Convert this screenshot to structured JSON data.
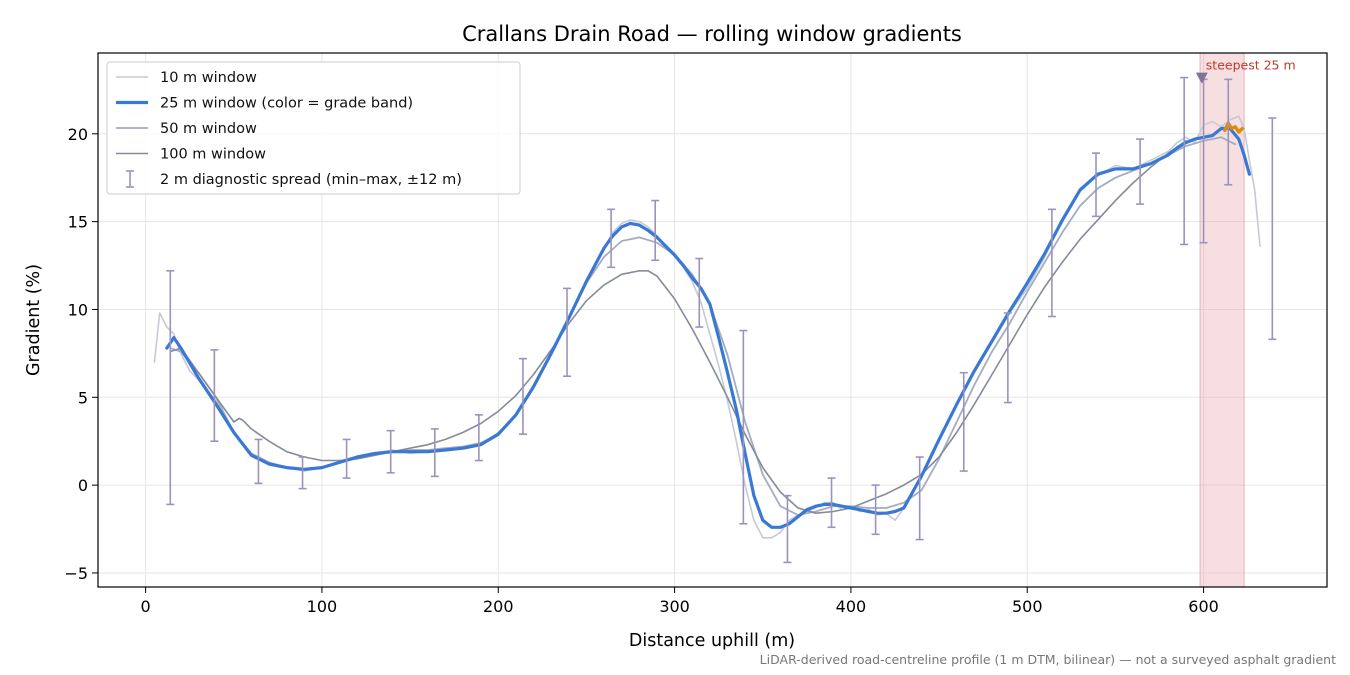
{
  "chart_data": {
    "type": "line",
    "title": "Crallans Drain Road — rolling window gradients",
    "xlabel": "Distance uphill (m)",
    "ylabel": "Gradient (%)",
    "xlim": [
      -27,
      670
    ],
    "ylim": [
      -5.8,
      24.6
    ],
    "xticks": [
      0,
      100,
      200,
      300,
      400,
      500,
      600
    ],
    "yticks": [
      -5,
      0,
      5,
      10,
      15,
      20
    ],
    "xtick_labels": [
      "0",
      "100",
      "200",
      "300",
      "400",
      "500",
      "600"
    ],
    "ytick_labels": [
      "−5",
      "0",
      "5",
      "10",
      "15",
      "20"
    ],
    "grid": true,
    "legend_position": "top-left",
    "footnote": "LiDAR-derived road-centreline profile (1 m DTM, bilinear) — not a surveyed asphalt gradient",
    "colors": {
      "w10": "#c4cad6",
      "w25_base": "#3a78d6",
      "w25_steep": "#e08a0b",
      "w50": "#a3adbd",
      "w100": "#868b9b",
      "errorbar": "#9b93bd",
      "highlight": "#e8a4a8",
      "marker": "#7d7596",
      "annotation": "#c0392b"
    },
    "legend": [
      {
        "key": "w10",
        "label": "10 m window"
      },
      {
        "key": "w25",
        "label": "25 m window (color = grade band)"
      },
      {
        "key": "w50",
        "label": "50 m window"
      },
      {
        "key": "w100",
        "label": "100 m window"
      },
      {
        "key": "err",
        "label": "2 m diagnostic spread (min–max, ±12 m)"
      }
    ],
    "steepest": {
      "label": "steepest 25 m",
      "x_start": 598,
      "x_end": 623,
      "marker_x": 599,
      "marker_y": 23.2
    },
    "series": [
      {
        "name": "10 m window",
        "key": "w10",
        "x": [
          5,
          8,
          12,
          16,
          20,
          25,
          30,
          40,
          50,
          60,
          70,
          80,
          90,
          100,
          110,
          120,
          130,
          140,
          150,
          160,
          170,
          180,
          190,
          200,
          210,
          220,
          230,
          240,
          250,
          260,
          265,
          270,
          275,
          280,
          285,
          290,
          295,
          300,
          305,
          310,
          315,
          320,
          325,
          330,
          335,
          340,
          345,
          350,
          355,
          360,
          365,
          370,
          375,
          380,
          385,
          390,
          395,
          400,
          405,
          410,
          415,
          420,
          425,
          430,
          440,
          450,
          460,
          470,
          480,
          490,
          500,
          510,
          520,
          530,
          540,
          550,
          560,
          570,
          580,
          585,
          590,
          595,
          600,
          605,
          610,
          615,
          620,
          623,
          626,
          629,
          632
        ],
        "y": [
          7.0,
          9.8,
          9.0,
          8.6,
          7.5,
          6.5,
          6.0,
          4.8,
          3.0,
          1.8,
          1.3,
          1.0,
          0.8,
          1.0,
          1.3,
          1.5,
          1.8,
          2.0,
          1.8,
          1.9,
          2.0,
          2.1,
          2.3,
          3.0,
          4.0,
          5.5,
          7.5,
          9.5,
          11.5,
          13.5,
          14.4,
          14.9,
          15.1,
          15.0,
          14.7,
          14.2,
          13.6,
          13.0,
          12.4,
          11.6,
          10.4,
          8.6,
          6.8,
          4.8,
          2.5,
          0.0,
          -2.0,
          -3.0,
          -3.0,
          -2.7,
          -2.0,
          -1.7,
          -1.5,
          -1.3,
          -1.0,
          -1.0,
          -1.4,
          -1.2,
          -1.5,
          -1.4,
          -1.7,
          -1.6,
          -2.0,
          -1.3,
          0.5,
          2.5,
          4.6,
          6.4,
          8.1,
          9.8,
          11.2,
          13.0,
          15.2,
          16.9,
          17.6,
          18.2,
          18.0,
          18.5,
          19.0,
          19.5,
          19.8,
          19.5,
          20.5,
          20.7,
          20.4,
          20.8,
          21.0,
          20.3,
          18.5,
          16.8,
          13.6
        ]
      },
      {
        "name": "25 m window (color = grade band)",
        "key": "w25",
        "x": [
          12,
          16,
          20,
          30,
          40,
          50,
          60,
          70,
          80,
          90,
          100,
          110,
          120,
          130,
          140,
          150,
          160,
          170,
          180,
          190,
          200,
          210,
          220,
          230,
          240,
          250,
          260,
          265,
          270,
          275,
          280,
          285,
          290,
          295,
          300,
          305,
          310,
          315,
          320,
          325,
          330,
          335,
          340,
          345,
          350,
          355,
          360,
          365,
          370,
          375,
          380,
          385,
          390,
          395,
          400,
          405,
          410,
          415,
          420,
          425,
          430,
          440,
          450,
          460,
          470,
          480,
          490,
          500,
          510,
          520,
          530,
          540,
          550,
          560,
          570,
          580,
          585,
          590,
          595,
          600,
          605,
          610,
          615,
          620,
          623,
          626
        ],
        "y": [
          7.8,
          8.4,
          7.8,
          6.1,
          4.6,
          3.0,
          1.7,
          1.2,
          1.0,
          0.9,
          1.0,
          1.3,
          1.6,
          1.8,
          1.9,
          1.9,
          1.9,
          2.0,
          2.1,
          2.3,
          2.9,
          4.0,
          5.6,
          7.5,
          9.5,
          11.6,
          13.5,
          14.2,
          14.7,
          14.9,
          14.8,
          14.5,
          14.1,
          13.6,
          13.1,
          12.5,
          11.8,
          11.2,
          10.3,
          8.4,
          6.4,
          4.3,
          1.8,
          -0.6,
          -2.0,
          -2.4,
          -2.4,
          -2.2,
          -1.8,
          -1.4,
          -1.2,
          -1.1,
          -1.1,
          -1.2,
          -1.3,
          -1.4,
          -1.5,
          -1.6,
          -1.6,
          -1.5,
          -1.3,
          0.5,
          2.6,
          4.6,
          6.5,
          8.2,
          9.9,
          11.5,
          13.2,
          15.1,
          16.8,
          17.7,
          18.0,
          18.0,
          18.3,
          18.8,
          19.2,
          19.5,
          19.7,
          19.8,
          19.9,
          20.3,
          20.3,
          19.7,
          18.8,
          17.7
        ]
      },
      {
        "name": "50 m window",
        "key": "w50",
        "x": [
          14,
          20,
          30,
          40,
          50,
          60,
          70,
          80,
          90,
          100,
          110,
          120,
          130,
          140,
          150,
          160,
          170,
          180,
          190,
          200,
          210,
          220,
          230,
          240,
          250,
          260,
          270,
          280,
          290,
          300,
          310,
          320,
          330,
          340,
          350,
          360,
          370,
          380,
          390,
          400,
          410,
          420,
          430,
          440,
          450,
          460,
          470,
          480,
          490,
          500,
          510,
          520,
          530,
          540,
          550,
          560,
          570,
          580,
          590,
          600,
          610,
          618
        ],
        "y": [
          7.8,
          7.6,
          6.4,
          5.0,
          3.0,
          1.8,
          1.3,
          1.0,
          0.9,
          1.0,
          1.3,
          1.6,
          1.8,
          1.9,
          2.0,
          2.0,
          2.1,
          2.2,
          2.4,
          2.9,
          4.0,
          5.6,
          7.5,
          9.5,
          11.5,
          13.0,
          13.9,
          14.1,
          13.8,
          13.1,
          12.0,
          10.3,
          7.4,
          3.6,
          0.6,
          -1.2,
          -1.7,
          -1.5,
          -1.2,
          -1.2,
          -1.3,
          -1.3,
          -1.0,
          -0.3,
          1.5,
          3.6,
          5.7,
          7.6,
          9.2,
          11.0,
          12.7,
          14.4,
          15.9,
          16.9,
          17.5,
          17.9,
          18.3,
          18.8,
          19.3,
          19.6,
          19.8,
          19.4
        ]
      },
      {
        "name": "100 m window",
        "key": "w100",
        "x": [
          14,
          20,
          30,
          40,
          50,
          53,
          55,
          60,
          70,
          80,
          90,
          100,
          110,
          120,
          130,
          140,
          150,
          160,
          170,
          180,
          190,
          200,
          210,
          220,
          230,
          240,
          250,
          260,
          270,
          280,
          285,
          290,
          300,
          310,
          320,
          330,
          340,
          350,
          360,
          370,
          380,
          390,
          400,
          410,
          420,
          430,
          440,
          450,
          460,
          470,
          480,
          490,
          500,
          510,
          520,
          530,
          540,
          550,
          560,
          570,
          580,
          590
        ],
        "y": [
          7.6,
          7.8,
          6.4,
          5.0,
          3.6,
          3.8,
          3.7,
          3.2,
          2.5,
          1.9,
          1.6,
          1.4,
          1.4,
          1.5,
          1.7,
          1.9,
          2.1,
          2.3,
          2.6,
          3.0,
          3.5,
          4.2,
          5.1,
          6.3,
          7.7,
          9.2,
          10.5,
          11.4,
          12.0,
          12.2,
          12.2,
          11.9,
          10.6,
          8.9,
          7.0,
          5.0,
          2.9,
          1.0,
          -0.4,
          -1.3,
          -1.6,
          -1.5,
          -1.3,
          -0.9,
          -0.5,
          0.0,
          0.6,
          1.6,
          3.0,
          4.6,
          6.3,
          8.0,
          9.7,
          11.3,
          12.7,
          14.0,
          15.1,
          16.2,
          17.2,
          18.1,
          18.9,
          19.6
        ]
      }
    ],
    "steep_band_segment": {
      "x": [
        612,
        614,
        616,
        618,
        620,
        622
      ],
      "y": [
        20.2,
        20.6,
        20.3,
        20.4,
        20.1,
        20.3
      ]
    },
    "errorbars": [
      {
        "x": 14,
        "low": -1.1,
        "high": 12.2,
        "center": 7.8
      },
      {
        "x": 39,
        "low": 2.5,
        "high": 7.7,
        "center": 5.0
      },
      {
        "x": 64,
        "low": 0.1,
        "high": 2.6,
        "center": 1.5
      },
      {
        "x": 89,
        "low": -0.2,
        "high": 1.6,
        "center": 0.9
      },
      {
        "x": 114,
        "low": 0.4,
        "high": 2.6,
        "center": 1.4
      },
      {
        "x": 139,
        "low": 0.7,
        "high": 3.1,
        "center": 1.9
      },
      {
        "x": 164,
        "low": 0.5,
        "high": 3.2,
        "center": 1.9
      },
      {
        "x": 189,
        "low": 1.4,
        "high": 4.0,
        "center": 2.3
      },
      {
        "x": 214,
        "low": 2.9,
        "high": 7.2,
        "center": 4.5
      },
      {
        "x": 239,
        "low": 6.2,
        "high": 11.2,
        "center": 9.3
      },
      {
        "x": 264,
        "low": 12.4,
        "high": 15.7,
        "center": 13.9
      },
      {
        "x": 289,
        "low": 12.8,
        "high": 16.2,
        "center": 14.2
      },
      {
        "x": 314,
        "low": 9.0,
        "high": 12.9,
        "center": 11.2
      },
      {
        "x": 339,
        "low": -2.2,
        "high": 8.8,
        "center": 2.0
      },
      {
        "x": 364,
        "low": -4.4,
        "high": -0.6,
        "center": -2.4
      },
      {
        "x": 389,
        "low": -2.4,
        "high": 0.4,
        "center": -1.1
      },
      {
        "x": 414,
        "low": -2.8,
        "high": 0.0,
        "center": -1.5
      },
      {
        "x": 439,
        "low": -3.1,
        "high": 1.6,
        "center": 0.5
      },
      {
        "x": 464,
        "low": 0.8,
        "high": 6.4,
        "center": 4.6
      },
      {
        "x": 489,
        "low": 4.7,
        "high": 9.8,
        "center": 8.1
      },
      {
        "x": 514,
        "low": 9.6,
        "high": 15.7,
        "center": 12.5
      },
      {
        "x": 539,
        "low": 15.3,
        "high": 18.9,
        "center": 17.0
      },
      {
        "x": 564,
        "low": 16.0,
        "high": 19.7,
        "center": 18.0
      },
      {
        "x": 589,
        "low": 13.7,
        "high": 23.2,
        "center": 19.5
      },
      {
        "x": 600,
        "low": 13.8,
        "high": 23.1,
        "center": 19.8
      },
      {
        "x": 614,
        "low": 17.1,
        "high": 23.1,
        "center": 20.4
      },
      {
        "x": 639,
        "low": 8.3,
        "high": 20.9,
        "center": 14.0
      }
    ]
  }
}
